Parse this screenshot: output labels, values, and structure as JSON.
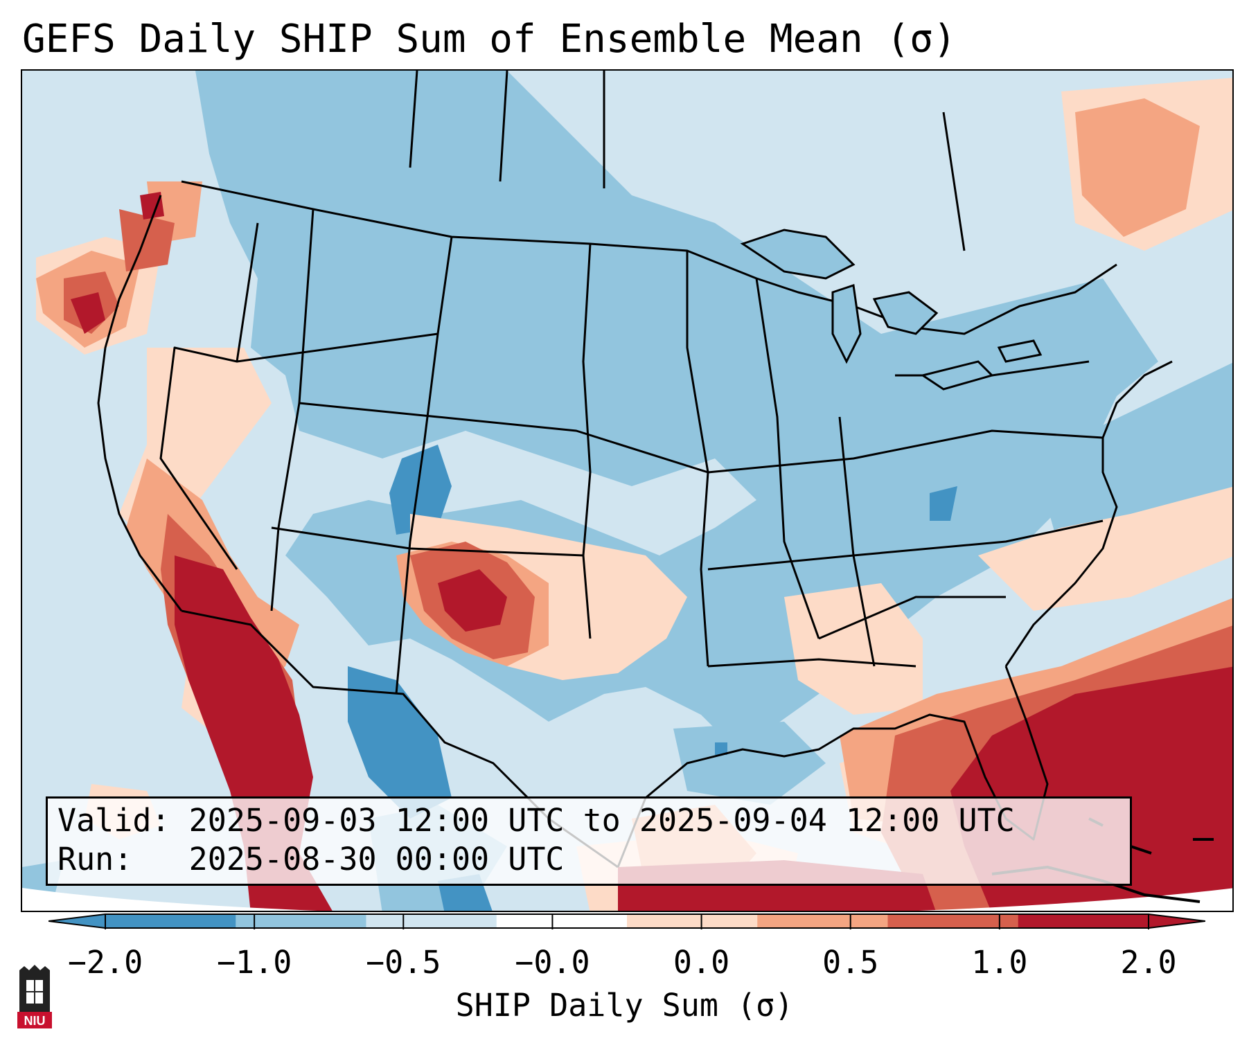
{
  "title": "GEFS Daily SHIP Sum of Ensemble Mean (σ)",
  "map": {
    "projection": "Lambert conformal",
    "region": "Contiguous United States",
    "field": "SHIP daily sum anomaly",
    "features": [
      "state-borders",
      "country-borders",
      "coastlines"
    ]
  },
  "info_box": {
    "valid_label": "Valid:",
    "valid_value": "2025-09-03 12:00 UTC to 2025-09-04 12:00 UTC",
    "run_label": "Run:",
    "run_value": "2025-08-30 00:00 UTC"
  },
  "colorbar": {
    "label": "SHIP Daily Sum (σ)",
    "ticks": [
      "−2.0",
      "−1.0",
      "−0.5",
      "−0.0",
      "0.0",
      "0.5",
      "1.0",
      "2.0"
    ],
    "colors": [
      "#4393c3",
      "#92c5de",
      "#d1e5f0",
      "#ffffff",
      "#fddbc7",
      "#f4a582",
      "#d6604d",
      "#b2182b"
    ],
    "extend": "both"
  },
  "logo": {
    "text": "NIU"
  }
}
